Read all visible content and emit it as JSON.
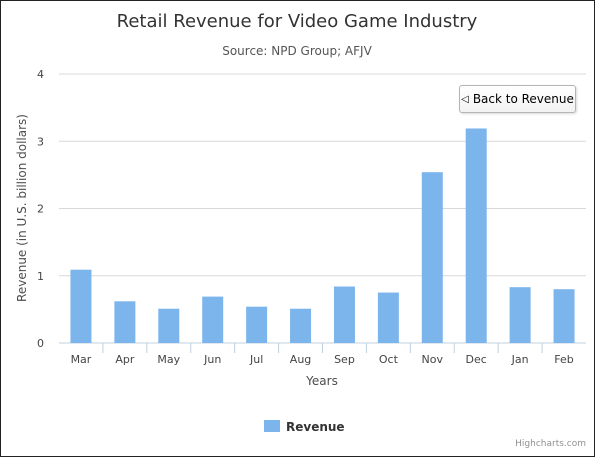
{
  "chart_data": {
    "type": "bar",
    "title": "Retail Revenue for Video Game Industry",
    "subtitle": "Source: NPD Group; AFJV",
    "xlabel": "Years",
    "ylabel": "Revenue (in U.S. billion dollars)",
    "categories": [
      "Mar",
      "Apr",
      "May",
      "Jun",
      "Jul",
      "Aug",
      "Sep",
      "Oct",
      "Nov",
      "Dec",
      "Jan",
      "Feb"
    ],
    "series": [
      {
        "name": "Revenue",
        "values": [
          1.09,
          0.62,
          0.51,
          0.69,
          0.54,
          0.51,
          0.84,
          0.75,
          2.54,
          3.19,
          0.83,
          0.8
        ]
      }
    ],
    "ylim": [
      0,
      4
    ],
    "yticks": [
      "0",
      "1",
      "2",
      "3",
      "4"
    ],
    "grid": true,
    "legend_position": "bottom-center",
    "bar_color": "#7cb5ec"
  },
  "drilldown": {
    "back_label": "Back to Revenue",
    "back_icon": "left-arrow-icon"
  },
  "credits": "Highcharts.com"
}
